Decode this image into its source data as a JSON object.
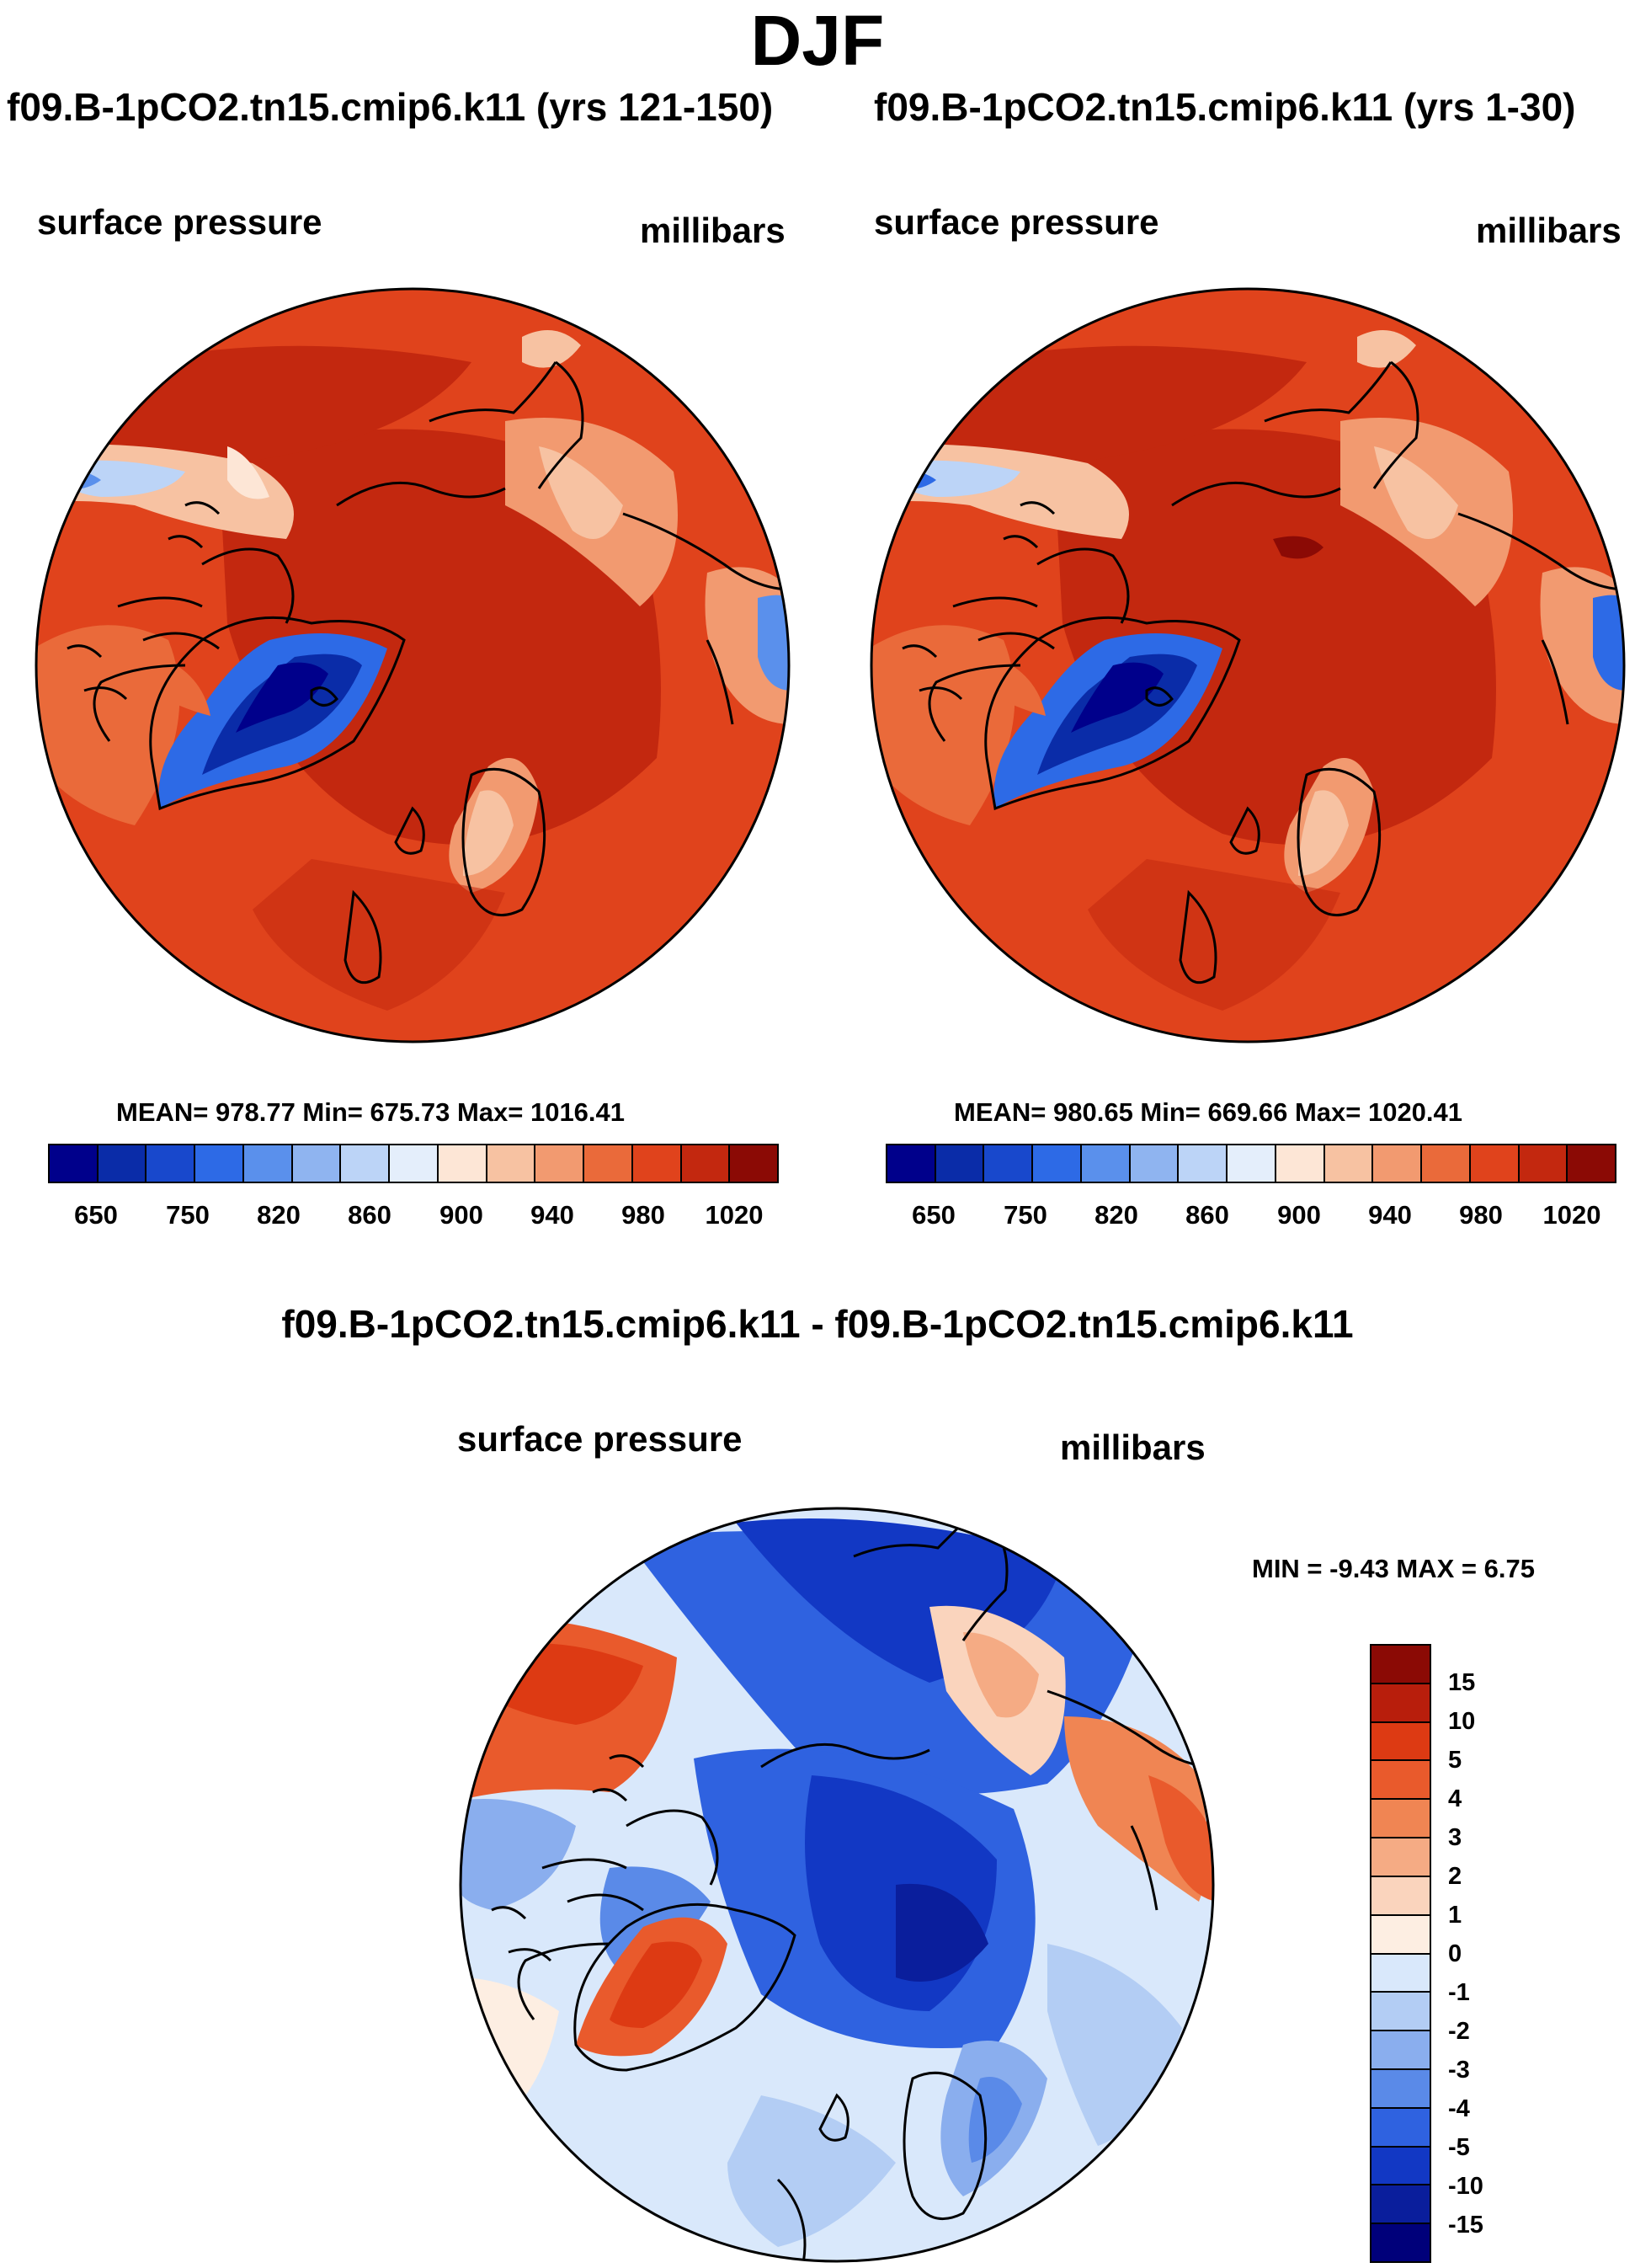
{
  "figure": {
    "title": "DJF"
  },
  "panels": [
    {
      "title": "f09.B-1pCO2.tn15.cmip6.k11 (yrs 121-150)",
      "left_label": "surface pressure",
      "right_label": "millibars",
      "stats": "MEAN= 978.77  Min= 675.73  Max= 1016.41",
      "colorbar_ticks": [
        "650",
        "750",
        "820",
        "860",
        "900",
        "940",
        "980",
        "1020"
      ]
    },
    {
      "title": "f09.B-1pCO2.tn15.cmip6.k11 (yrs 1-30)",
      "left_label": "surface pressure",
      "right_label": "millibars",
      "stats": "MEAN= 980.65  Min= 669.66  Max= 1020.41",
      "colorbar_ticks": [
        "650",
        "750",
        "820",
        "860",
        "900",
        "940",
        "980",
        "1020"
      ]
    }
  ],
  "difference": {
    "title": "f09.B-1pCO2.tn15.cmip6.k11 - f09.B-1pCO2.tn15.cmip6.k11",
    "left_label": "surface pressure",
    "right_label": "millibars",
    "stats": "MIN =  -9.43 MAX =   6.75",
    "colorbar_ticks": [
      "15",
      "10",
      "5",
      "4",
      "3",
      "2",
      "1",
      "0",
      "-1",
      "-2",
      "-3",
      "-4",
      "-5",
      "-10",
      "-15"
    ]
  },
  "colors": {
    "pressure_scale": [
      "#00008b",
      "#0a2ca8",
      "#1848cc",
      "#2d6ae6",
      "#5a90ec",
      "#8fb4f0",
      "#bcd4f7",
      "#e4eefb",
      "#fde6d6",
      "#f7c2a2",
      "#f29a70",
      "#ea6a3a",
      "#e0431c",
      "#c3280f",
      "#8b0a05"
    ],
    "diff_scale": [
      "#8b0a05",
      "#b81e0c",
      "#dd3a13",
      "#e95a2c",
      "#f08553",
      "#f5ab84",
      "#fad4bd",
      "#fdeee2",
      "#d9e8fb",
      "#b3cdf4",
      "#8aaeee",
      "#5a8ae8",
      "#2f62e0",
      "#1238c4",
      "#0a1e9c",
      "#00007a"
    ]
  },
  "chart_data": [
    {
      "type": "heatmap",
      "title": "f09.B-1pCO2.tn15.cmip6.k11 (yrs 121-150)",
      "variable": "surface pressure",
      "units": "millibars",
      "projection": "north polar stereographic",
      "season": "DJF",
      "mean": 978.77,
      "min": 675.73,
      "max": 1016.41,
      "contour_levels": [
        650,
        700,
        750,
        780,
        820,
        840,
        860,
        880,
        900,
        920,
        940,
        960,
        980,
        1000,
        1020
      ],
      "colorbar_tick_labels": [
        650,
        750,
        820,
        860,
        900,
        940,
        980,
        1020
      ]
    },
    {
      "type": "heatmap",
      "title": "f09.B-1pCO2.tn15.cmip6.k11 (yrs 1-30)",
      "variable": "surface pressure",
      "units": "millibars",
      "projection": "north polar stereographic",
      "season": "DJF",
      "mean": 980.65,
      "min": 669.66,
      "max": 1020.41,
      "contour_levels": [
        650,
        700,
        750,
        780,
        820,
        840,
        860,
        880,
        900,
        920,
        940,
        960,
        980,
        1000,
        1020
      ],
      "colorbar_tick_labels": [
        650,
        750,
        820,
        860,
        900,
        940,
        980,
        1020
      ]
    },
    {
      "type": "heatmap",
      "title": "f09.B-1pCO2.tn15.cmip6.k11 - f09.B-1pCO2.tn15.cmip6.k11",
      "variable": "surface pressure",
      "units": "millibars",
      "projection": "north polar stereographic",
      "season": "DJF",
      "min": -9.43,
      "max": 6.75,
      "contour_levels": [
        -15,
        -10,
        -5,
        -4,
        -3,
        -2,
        -1,
        0,
        1,
        2,
        3,
        4,
        5,
        10,
        15
      ]
    }
  ]
}
